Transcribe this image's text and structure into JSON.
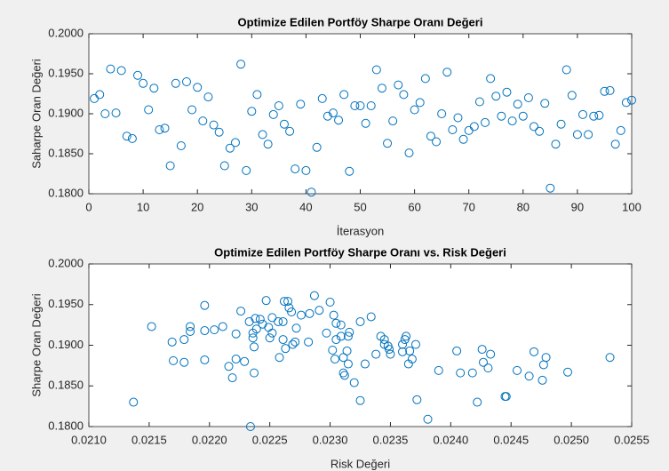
{
  "chart_data": [
    {
      "type": "scatter",
      "title": "Optimize Edilen Portföy Sharpe Oranı Değeri",
      "x_label": "İterasyon",
      "y_label": "Saharpe Oran Değeri",
      "color": "#0072bd",
      "x": [
        1,
        2,
        3,
        4,
        5,
        6,
        7,
        8,
        9,
        10,
        11,
        12,
        13,
        14,
        15,
        16,
        17,
        18,
        19,
        20,
        21,
        22,
        23,
        24,
        25,
        26,
        27,
        28,
        29,
        30,
        31,
        32,
        33,
        34,
        35,
        36,
        37,
        38,
        39,
        40,
        41,
        42,
        43,
        44,
        45,
        46,
        47,
        48,
        49,
        50,
        51,
        52,
        53,
        54,
        55,
        56,
        57,
        58,
        59,
        60,
        61,
        62,
        63,
        64,
        65,
        66,
        67,
        68,
        69,
        70,
        71,
        72,
        73,
        74,
        75,
        76,
        77,
        78,
        79,
        80,
        81,
        82,
        83,
        84,
        85,
        86,
        87,
        88,
        89,
        90,
        91,
        92,
        93,
        94,
        95,
        96,
        97,
        98,
        99,
        100
      ],
      "y": [
        0.1919,
        0.1924,
        0.19,
        0.1956,
        0.1901,
        0.1954,
        0.1872,
        0.1869,
        0.1948,
        0.1938,
        0.1905,
        0.1932,
        0.188,
        0.1882,
        0.1835,
        0.1938,
        0.186,
        0.194,
        0.1905,
        0.1933,
        0.1891,
        0.1921,
        0.1886,
        0.1877,
        0.1835,
        0.1857,
        0.1864,
        0.1962,
        0.1829,
        0.1903,
        0.1924,
        0.1874,
        0.1862,
        0.1899,
        0.191,
        0.1887,
        0.1878,
        0.1831,
        0.1912,
        0.1829,
        0.1802,
        0.1858,
        0.1919,
        0.1897,
        0.1901,
        0.1892,
        0.1924,
        0.1828,
        0.191,
        0.191,
        0.1888,
        0.191,
        0.1955,
        0.1932,
        0.1863,
        0.1891,
        0.1936,
        0.1924,
        0.1851,
        0.1905,
        0.1914,
        0.1944,
        0.1872,
        0.1865,
        0.19,
        0.1952,
        0.188,
        0.1895,
        0.1868,
        0.1879,
        0.1884,
        0.1915,
        0.1889,
        0.1944,
        0.1922,
        0.1897,
        0.1927,
        0.1891,
        0.1912,
        0.1897,
        0.192,
        0.1884,
        0.1878,
        0.1913,
        0.1807,
        0.1862,
        0.1887,
        0.1955,
        0.1923,
        0.1874,
        0.1899,
        0.1874,
        0.1897,
        0.1898,
        0.1928,
        0.1929,
        0.1862,
        0.1879,
        0.1914,
        0.1917
      ],
      "xlim": [
        0,
        100
      ],
      "xticks": [
        0,
        10,
        20,
        30,
        40,
        50,
        60,
        70,
        80,
        90,
        100
      ],
      "ylim": [
        0.18,
        0.2
      ],
      "yticks": [
        {
          "value": 0.18,
          "label": "0.1800"
        },
        {
          "value": 0.185,
          "label": "0.1850"
        },
        {
          "value": 0.19,
          "label": "0.1900"
        },
        {
          "value": 0.195,
          "label": "0.1950"
        },
        {
          "value": 0.2,
          "label": "0.2000"
        }
      ]
    },
    {
      "type": "scatter",
      "title": "Optimize Edilen Portföy Sharpe Oranı vs. Risk Değeri",
      "x_label": "Risk Değeri",
      "y_label": "Sharpe Oran Değeri",
      "color": "#0072bd",
      "x": [
        0.02137,
        0.02152,
        0.02169,
        0.0217,
        0.02179,
        0.02179,
        0.02184,
        0.02184,
        0.02196,
        0.02196,
        0.02196,
        0.02204,
        0.02211,
        0.02216,
        0.02219,
        0.02222,
        0.02222,
        0.02226,
        0.02229,
        0.02233,
        0.02234,
        0.02236,
        0.02236,
        0.02237,
        0.02237,
        0.02238,
        0.02239,
        0.02242,
        0.02244,
        0.02247,
        0.02249,
        0.0225,
        0.02252,
        0.02252,
        0.02257,
        0.02258,
        0.02261,
        0.02261,
        0.02262,
        0.02263,
        0.02265,
        0.02266,
        0.02268,
        0.02269,
        0.02271,
        0.02272,
        0.02276,
        0.02282,
        0.02283,
        0.02287,
        0.02291,
        0.02297,
        0.023,
        0.02302,
        0.02303,
        0.02304,
        0.02305,
        0.02305,
        0.02309,
        0.02309,
        0.02311,
        0.02311,
        0.02312,
        0.02314,
        0.02315,
        0.02315,
        0.02316,
        0.0232,
        0.02325,
        0.02325,
        0.02329,
        0.02334,
        0.02338,
        0.02342,
        0.02345,
        0.02345,
        0.02348,
        0.02349,
        0.0235,
        0.0236,
        0.0236,
        0.02362,
        0.02363,
        0.02365,
        0.02366,
        0.02368,
        0.02371,
        0.02372,
        0.02381,
        0.0239,
        0.02405,
        0.02408,
        0.02418,
        0.02422,
        0.02426,
        0.02427,
        0.02431,
        0.02433,
        0.02445,
        0.02446,
        0.02455,
        0.02465,
        0.02469,
        0.02476,
        0.02477,
        0.02479,
        0.02497,
        0.02532
      ],
      "y": [
        0.183,
        0.1923,
        0.1904,
        0.1881,
        0.1907,
        0.1879,
        0.1923,
        0.1917,
        0.1918,
        0.1882,
        0.1949,
        0.1919,
        0.1923,
        0.1874,
        0.186,
        0.1883,
        0.1914,
        0.1942,
        0.188,
        0.1929,
        0.18,
        0.1915,
        0.1909,
        0.1866,
        0.1898,
        0.1933,
        0.192,
        0.1932,
        0.1926,
        0.1955,
        0.1922,
        0.1909,
        0.1934,
        0.1915,
        0.1929,
        0.1885,
        0.1929,
        0.1907,
        0.1954,
        0.1896,
        0.1954,
        0.1946,
        0.1941,
        0.1901,
        0.1904,
        0.1921,
        0.1937,
        0.1904,
        0.1939,
        0.1961,
        0.1943,
        0.1915,
        0.1953,
        0.1894,
        0.1937,
        0.1883,
        0.1907,
        0.1927,
        0.1911,
        0.1925,
        0.1885,
        0.1866,
        0.1863,
        0.1893,
        0.1911,
        0.1877,
        0.1916,
        0.1854,
        0.1929,
        0.1832,
        0.1877,
        0.1935,
        0.1889,
        0.1911,
        0.1901,
        0.1907,
        0.1899,
        0.1895,
        0.1889,
        0.1892,
        0.1901,
        0.1907,
        0.1911,
        0.1877,
        0.1893,
        0.1883,
        0.1901,
        0.1833,
        0.1809,
        0.1869,
        0.1893,
        0.1866,
        0.1866,
        0.183,
        0.1895,
        0.1879,
        0.1872,
        0.1889,
        0.1837,
        0.1837,
        0.1869,
        0.1862,
        0.1892,
        0.1857,
        0.1876,
        0.1885,
        0.1867,
        0.1885
      ],
      "xlim": [
        0.021,
        0.0255
      ],
      "xticks": [
        {
          "value": 0.021,
          "label": "0.0210"
        },
        {
          "value": 0.0215,
          "label": "0.0215"
        },
        {
          "value": 0.022,
          "label": "0.0220"
        },
        {
          "value": 0.0225,
          "label": "0.0225"
        },
        {
          "value": 0.023,
          "label": "0.0230"
        },
        {
          "value": 0.0235,
          "label": "0.0235"
        },
        {
          "value": 0.024,
          "label": "0.0240"
        },
        {
          "value": 0.0245,
          "label": "0.0245"
        },
        {
          "value": 0.025,
          "label": "0.0250"
        },
        {
          "value": 0.0255,
          "label": "0.0255"
        }
      ],
      "ylim": [
        0.18,
        0.2
      ],
      "yticks": [
        {
          "value": 0.18,
          "label": "0.1800"
        },
        {
          "value": 0.185,
          "label": "0.1850"
        },
        {
          "value": 0.19,
          "label": "0.1900"
        },
        {
          "value": 0.195,
          "label": "0.1950"
        },
        {
          "value": 0.2,
          "label": "0.2000"
        }
      ]
    }
  ]
}
